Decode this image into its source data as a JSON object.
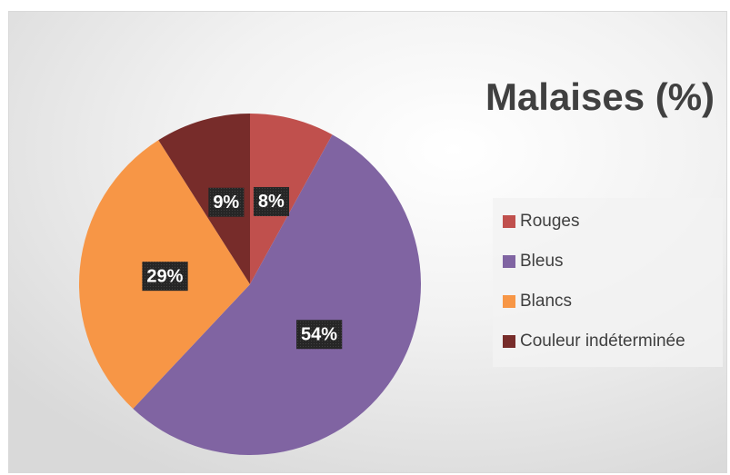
{
  "chart_data": {
    "type": "pie",
    "title": "Malaises (%)",
    "categories": [
      "Rouges",
      "Bleus",
      "Blancs",
      "Couleur indéterminée"
    ],
    "values": [
      8,
      54,
      29,
      9
    ],
    "value_labels": [
      "8%",
      "54%",
      "29%",
      "9%"
    ],
    "colors": [
      "#c0504d",
      "#8064a2",
      "#f79646",
      "#772c2a"
    ],
    "legend": "right"
  }
}
